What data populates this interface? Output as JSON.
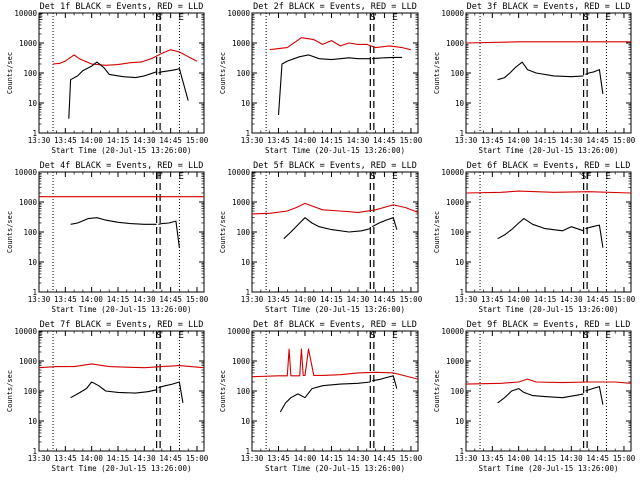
{
  "colors": {
    "events": "#000000",
    "lld": "#d40000",
    "axis": "#000000",
    "background": "#ffffff"
  },
  "x_ticks": [
    "13:30",
    "13:45",
    "14:00",
    "14:15",
    "14:30",
    "14:45",
    "15:00"
  ],
  "y_ticks": [
    "1",
    "10",
    "100",
    "1000",
    "10000"
  ],
  "ylabel": "Counts/sec",
  "xlabel": "Start Time (20-Jul-15 13:26:00)",
  "markers": {
    "E": "E",
    "S": "S",
    "F": "F"
  },
  "chart_data": [
    {
      "type": "line",
      "title": "Det 1f BLACK = Events, RED = LLD",
      "xlabel": "Start Time (20-Jul-15 13:26:00)",
      "ylabel": "Counts/sec",
      "xlim_minutes_after_13_30": [
        0,
        94
      ],
      "ylim": [
        1,
        10000
      ],
      "yscale": "log",
      "dotted_lines_minutes": [
        8,
        80
      ],
      "dashed_lines_minutes": [
        67,
        69
      ],
      "marker_labels": [
        "E",
        "S",
        "E"
      ],
      "series": [
        {
          "color": "red",
          "x": [
            8,
            12,
            15,
            20,
            23,
            30,
            38,
            45,
            52,
            58,
            64,
            70,
            75,
            80,
            85,
            90
          ],
          "y": [
            200,
            210,
            250,
            400,
            300,
            200,
            180,
            190,
            220,
            230,
            300,
            450,
            600,
            500,
            350,
            250
          ]
        },
        {
          "color": "black",
          "x": [
            17,
            18,
            22,
            25,
            30,
            33,
            37,
            40,
            48,
            55,
            60,
            67
          ],
          "y": [
            3,
            60,
            80,
            120,
            170,
            230,
            150,
            90,
            75,
            70,
            80,
            110
          ]
        },
        {
          "color": "black",
          "x": [
            68,
            70,
            75,
            78,
            80,
            85
          ],
          "y": [
            100,
            110,
            120,
            130,
            140,
            12
          ]
        }
      ]
    },
    {
      "type": "line",
      "title": "Det 2f BLACK = Events, RED = LLD",
      "xlabel": "Start Time (20-Jul-15 13:26:00)",
      "ylabel": "Counts/sec",
      "xlim_minutes_after_13_30": [
        0,
        94
      ],
      "ylim": [
        1,
        10000
      ],
      "yscale": "log",
      "dotted_lines_minutes": [
        8,
        80
      ],
      "dashed_lines_minutes": [
        67,
        69
      ],
      "marker_labels": [
        "S",
        "E"
      ],
      "series": [
        {
          "color": "red",
          "x": [
            10,
            15,
            20,
            28,
            35,
            40,
            45,
            50,
            55,
            60,
            65,
            70,
            78,
            85,
            90
          ],
          "y": [
            600,
            650,
            700,
            1500,
            1300,
            900,
            1200,
            800,
            1000,
            900,
            900,
            700,
            800,
            700,
            600
          ]
        },
        {
          "color": "black",
          "x": [
            15,
            17,
            20,
            27,
            32,
            38,
            45,
            55,
            60,
            67
          ],
          "y": [
            4,
            200,
            250,
            350,
            400,
            300,
            280,
            320,
            300,
            300
          ]
        },
        {
          "color": "black",
          "x": [
            68,
            70,
            75,
            80,
            85
          ],
          "y": [
            300,
            310,
            320,
            330,
            330
          ]
        }
      ]
    },
    {
      "type": "line",
      "title": "Det 3f BLACK = Events, RED = LLD",
      "xlabel": "Start Time (20-Jul-15 13:26:00)",
      "ylabel": "Counts/sec",
      "xlim_minutes_after_13_30": [
        0,
        94
      ],
      "ylim": [
        1,
        10000
      ],
      "yscale": "log",
      "dotted_lines_minutes": [
        8,
        80
      ],
      "dashed_lines_minutes": [
        67,
        69
      ],
      "marker_labels": [
        "S",
        "E"
      ],
      "series": [
        {
          "color": "red",
          "x": [
            0,
            30,
            60,
            94
          ],
          "y": [
            1000,
            1100,
            1100,
            1100
          ]
        },
        {
          "color": "black",
          "x": [
            18,
            22,
            25,
            28,
            32,
            35,
            40,
            50,
            60,
            67
          ],
          "y": [
            60,
            70,
            100,
            150,
            230,
            130,
            100,
            80,
            75,
            80
          ]
        },
        {
          "color": "black",
          "x": [
            68,
            70,
            73,
            76,
            78
          ],
          "y": [
            90,
            100,
            110,
            130,
            20
          ]
        }
      ]
    },
    {
      "type": "line",
      "title": "Det 4f BLACK = Events, RED = LLD",
      "xlabel": "Start Time (20-Jul-15 13:26:00)",
      "ylabel": "Counts/sec",
      "xlim_minutes_after_13_30": [
        0,
        94
      ],
      "ylim": [
        1,
        10000
      ],
      "yscale": "log",
      "dotted_lines_minutes": [
        8,
        80
      ],
      "dashed_lines_minutes": [
        67,
        69
      ],
      "marker_labels": [
        "F",
        "E"
      ],
      "series": [
        {
          "color": "red",
          "x": [
            0,
            94
          ],
          "y": [
            1500,
            1500
          ]
        },
        {
          "color": "black",
          "x": [
            18,
            22,
            28,
            33,
            38,
            45,
            52,
            60,
            67
          ],
          "y": [
            180,
            200,
            280,
            300,
            250,
            210,
            190,
            180,
            180
          ]
        },
        {
          "color": "black",
          "x": [
            68,
            70,
            74,
            78,
            80
          ],
          "y": [
            180,
            190,
            200,
            230,
            30
          ]
        }
      ]
    },
    {
      "type": "line",
      "title": "Det 5f BLACK = Events, RED = LLD",
      "xlabel": "Start Time (20-Jul-15 13:26:00)",
      "ylabel": "Counts/sec",
      "xlim_minutes_after_13_30": [
        0,
        94
      ],
      "ylim": [
        1,
        10000
      ],
      "yscale": "log",
      "dotted_lines_minutes": [
        8,
        80
      ],
      "dashed_lines_minutes": [
        67,
        69
      ],
      "marker_labels": [
        "E",
        "S",
        "E"
      ],
      "series": [
        {
          "color": "red",
          "x": [
            0,
            10,
            20,
            25,
            30,
            35,
            40,
            50,
            60,
            70,
            80,
            87,
            94
          ],
          "y": [
            400,
            420,
            500,
            650,
            900,
            700,
            550,
            500,
            450,
            550,
            800,
            650,
            450
          ]
        },
        {
          "color": "black",
          "x": [
            18,
            22,
            27,
            30,
            34,
            38,
            45,
            55,
            62,
            67
          ],
          "y": [
            60,
            100,
            200,
            300,
            200,
            150,
            120,
            100,
            110,
            130
          ]
        },
        {
          "color": "black",
          "x": [
            68,
            72,
            76,
            80,
            82
          ],
          "y": [
            150,
            200,
            250,
            300,
            120
          ]
        }
      ]
    },
    {
      "type": "line",
      "title": "Det 6f BLACK = Events, RED = LLD",
      "xlabel": "Start Time (20-Jul-15 13:26:00)",
      "ylabel": "Counts/sec",
      "xlim_minutes_after_13_30": [
        0,
        94
      ],
      "ylim": [
        1,
        10000
      ],
      "yscale": "log",
      "dotted_lines_minutes": [
        8,
        80
      ],
      "dashed_lines_minutes": [
        67,
        69
      ],
      "marker_labels": [
        "SF",
        "E"
      ],
      "series": [
        {
          "color": "red",
          "x": [
            0,
            20,
            30,
            50,
            70,
            94
          ],
          "y": [
            2000,
            2100,
            2300,
            2100,
            2200,
            2000
          ]
        },
        {
          "color": "black",
          "x": [
            18,
            22,
            26,
            30,
            33,
            38,
            45,
            55,
            60,
            67
          ],
          "y": [
            60,
            80,
            120,
            200,
            280,
            180,
            130,
            110,
            150,
            110
          ]
        },
        {
          "color": "black",
          "x": [
            68,
            72,
            76,
            78
          ],
          "y": [
            130,
            150,
            170,
            30
          ]
        }
      ]
    },
    {
      "type": "line",
      "title": "Det 7f BLACK = Events, RED = LLD",
      "xlabel": "Start Time (20-Jul-15 13:26:00)",
      "ylabel": "Counts/sec",
      "xlim_minutes_after_13_30": [
        0,
        94
      ],
      "ylim": [
        1,
        10000
      ],
      "yscale": "log",
      "dotted_lines_minutes": [
        8,
        80
      ],
      "dashed_lines_minutes": [
        67,
        69
      ],
      "marker_labels": [
        "E",
        "S",
        "E"
      ],
      "series": [
        {
          "color": "red",
          "x": [
            0,
            10,
            20,
            30,
            40,
            50,
            60,
            70,
            80,
            94
          ],
          "y": [
            600,
            650,
            650,
            800,
            650,
            620,
            600,
            650,
            700,
            600
          ]
        },
        {
          "color": "black",
          "x": [
            18,
            22,
            27,
            30,
            34,
            38,
            45,
            55,
            62,
            67
          ],
          "y": [
            60,
            80,
            120,
            200,
            150,
            100,
            90,
            85,
            95,
            110
          ]
        },
        {
          "color": "black",
          "x": [
            68,
            72,
            76,
            80,
            82
          ],
          "y": [
            130,
            150,
            170,
            200,
            40
          ]
        }
      ]
    },
    {
      "type": "line",
      "title": "Det 8f BLACK = Events, RED = LLD",
      "xlabel": "Start Time (20-Jul-15 13:26:00)",
      "ylabel": "Counts/sec",
      "xlim_minutes_after_13_30": [
        0,
        94
      ],
      "ylim": [
        1,
        10000
      ],
      "yscale": "log",
      "dotted_lines_minutes": [
        8,
        80
      ],
      "dashed_lines_minutes": [
        67,
        69
      ],
      "marker_labels": [
        "S",
        "E"
      ],
      "series": [
        {
          "color": "red",
          "x": [
            0,
            15,
            20,
            21,
            22,
            27,
            28,
            29,
            30,
            32,
            35,
            40,
            50,
            60,
            70,
            80,
            94
          ],
          "y": [
            300,
            320,
            320,
            2500,
            320,
            320,
            2500,
            330,
            330,
            2500,
            330,
            330,
            350,
            400,
            420,
            400,
            250
          ]
        },
        {
          "color": "black",
          "x": [
            16,
            19,
            22,
            26,
            30,
            34,
            40,
            50,
            60,
            67
          ],
          "y": [
            20,
            40,
            60,
            80,
            60,
            120,
            150,
            170,
            180,
            200
          ]
        },
        {
          "color": "black",
          "x": [
            68,
            72,
            76,
            80,
            82
          ],
          "y": [
            220,
            240,
            280,
            320,
            120
          ]
        }
      ]
    },
    {
      "type": "line",
      "title": "Det 9f BLACK = Events, RED = LLD",
      "xlabel": "Start Time (20-Jul-15 13:26:00)",
      "ylabel": "Counts/sec",
      "xlim_minutes_after_13_30": [
        0,
        94
      ],
      "ylim": [
        1,
        10000
      ],
      "yscale": "log",
      "dotted_lines_minutes": [
        8,
        80
      ],
      "dashed_lines_minutes": [
        67,
        69
      ],
      "marker_labels": [
        "S",
        "E"
      ],
      "series": [
        {
          "color": "red",
          "x": [
            0,
            20,
            30,
            35,
            40,
            55,
            70,
            85,
            94
          ],
          "y": [
            170,
            180,
            200,
            250,
            200,
            190,
            200,
            200,
            180
          ]
        },
        {
          "color": "black",
          "x": [
            18,
            22,
            26,
            30,
            33,
            38,
            45,
            55,
            62,
            67
          ],
          "y": [
            40,
            60,
            100,
            120,
            90,
            70,
            65,
            60,
            70,
            80
          ]
        },
        {
          "color": "black",
          "x": [
            68,
            72,
            76,
            78
          ],
          "y": [
            100,
            120,
            140,
            35
          ]
        }
      ]
    }
  ]
}
